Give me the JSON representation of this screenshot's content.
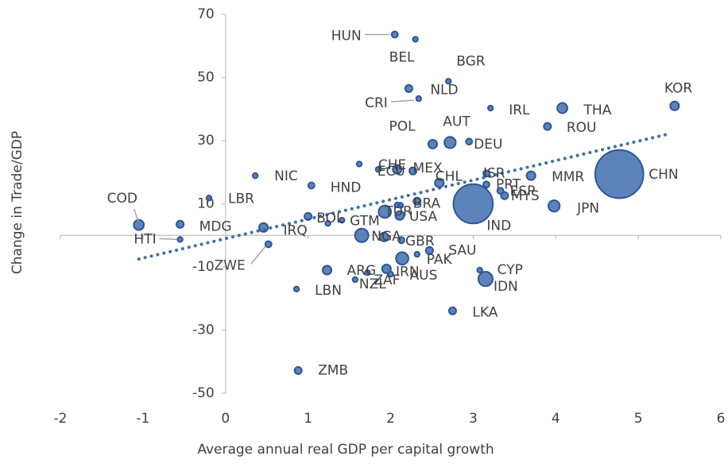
{
  "chart_data": {
    "type": "bubble",
    "x_label": "Average annual real GDP per capital growth",
    "y_label": "Change in Trade/GDP",
    "xlim": [
      -2,
      6
    ],
    "xticks": [
      -2,
      -1,
      0,
      1,
      2,
      3,
      4,
      5,
      6
    ],
    "ylim": [
      -50,
      70
    ],
    "yticks": [
      -50,
      -30,
      -10,
      10,
      30,
      50,
      70
    ],
    "grid": false,
    "series": [
      {
        "color": "#3f6fae",
        "labels": [
          "HUN",
          "BEL",
          "BGR",
          "NLD",
          "CRI",
          "IRL",
          "THA",
          "KOR",
          "ROU",
          "POL",
          "AUT",
          "DEU",
          "CHN",
          "MMR",
          "ISR",
          "NIC",
          "HND",
          "LBR",
          "COD",
          "MDG",
          "HTI",
          "IRQ",
          "ZWE",
          "JPN",
          "IND",
          "MYS",
          "ESP",
          "PRT",
          "CHE",
          "ECU",
          "MEX",
          "CHL",
          "TUR",
          "BOL",
          "GTM",
          "NGA",
          "GBR",
          "PAK",
          "SAU",
          "USA",
          "BRA",
          "ARG",
          "IRN",
          "AUS",
          "ZAF",
          "NZL",
          "LBN",
          "CYP",
          "IDN",
          "LKA",
          "ZMB",
          null,
          null,
          null,
          null,
          null,
          null
        ],
        "x": [
          2.05,
          2.3,
          2.7,
          2.22,
          2.34,
          3.21,
          4.08,
          5.44,
          3.9,
          2.51,
          2.72,
          2.95,
          4.77,
          3.7,
          3.16,
          0.36,
          1.04,
          -0.2,
          -1.05,
          -0.55,
          -0.55,
          0.46,
          0.52,
          3.98,
          3.0,
          3.38,
          3.33,
          3.16,
          1.85,
          2.08,
          2.27,
          2.59,
          1.93,
          1.41,
          1.65,
          1.92,
          2.13,
          2.32,
          2.47,
          2.11,
          2.32,
          1.23,
          2.14,
          2.0,
          1.72,
          1.57,
          0.86,
          3.08,
          3.15,
          2.75,
          0.88,
          1.62,
          1.24,
          1.0,
          2.08,
          1.95,
          2.12
        ],
        "values": [
          63.6,
          62.1,
          48.8,
          46.5,
          43.3,
          40.3,
          40.3,
          41,
          34.5,
          28.9,
          29.4,
          29.7,
          19.4,
          18.9,
          19.6,
          18.9,
          15.8,
          11.8,
          3.3,
          3.5,
          -1.3,
          2.5,
          -2.8,
          9.3,
          10,
          12.6,
          14.1,
          16.1,
          20.9,
          20.9,
          20.4,
          16.6,
          7.5,
          4.8,
          0,
          -0.5,
          -1.5,
          -6,
          -4.8,
          6.3,
          10.8,
          -11,
          -7.3,
          -12.3,
          -11.8,
          -14,
          -17,
          -11,
          -13.8,
          -23.9,
          -42.8,
          22.6,
          3.8,
          6,
          9.6,
          -10.6,
          9.5
        ],
        "sizes": [
          1.5,
          1,
          1,
          2,
          1,
          1,
          4,
          3,
          2,
          3,
          5,
          1.5,
          90,
          3,
          1.5,
          1,
          1.5,
          1,
          4,
          2,
          1,
          3,
          1.5,
          5,
          60,
          2,
          1.5,
          1.5,
          1,
          3,
          2,
          3,
          6,
          1,
          7,
          3,
          1.5,
          1,
          2,
          3,
          2,
          3,
          6,
          1,
          1,
          1,
          1,
          1,
          8,
          2,
          2,
          1,
          1,
          2,
          1,
          3,
          1
        ]
      }
    ],
    "trendline": {
      "x": [
        -1.05,
        5.35
      ],
      "values": [
        -7.5,
        32
      ],
      "color": "#41729f"
    }
  }
}
